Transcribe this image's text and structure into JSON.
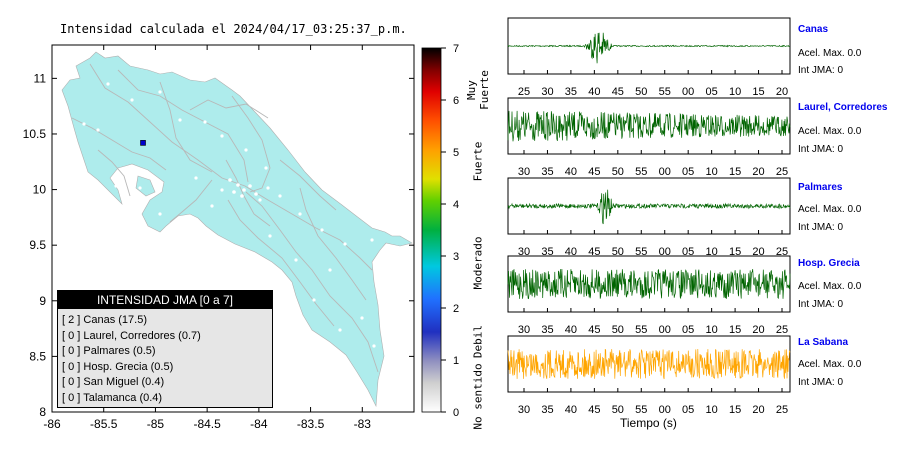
{
  "map": {
    "title": "Intensidad calculada el 2024/04/17_03:25:37_p.m.",
    "x_ticks": [
      "-86",
      "-85.5",
      "-85",
      "-84.5",
      "-84",
      "-83.5",
      "-83"
    ],
    "y_ticks": [
      "11",
      "10.5",
      "10",
      "9.5",
      "9",
      "8.5",
      "8"
    ],
    "station": {
      "lon": -85.12,
      "lat": 10.42
    }
  },
  "legend": {
    "title": "INTENSIDAD JMA [0 a 7]",
    "rows": [
      "[ 2 ]  Canas (17.5)",
      "[ 0 ]  Laurel, Corredores (0.7)",
      "[ 0 ]  Palmares (0.5)",
      "[ 0 ]  Hosp. Grecia (0.5)",
      "[ 0 ]  San Miguel (0.4)",
      "[ 0 ]  Talamanca (0.4)"
    ]
  },
  "colorbar": {
    "ticks": [
      "0",
      "1",
      "2",
      "3",
      "4",
      "5",
      "6",
      "7"
    ],
    "labels": [
      "No sentido",
      "Debil",
      "Moderado",
      "Fuerte",
      "Muy Fuerte"
    ]
  },
  "traces": {
    "xlabel": "Tiempo (s)",
    "accel_label": "Acel. Max. 0.0",
    "int_label": "Int JMA: 0",
    "items": [
      {
        "name": "Canas",
        "color": "#006400",
        "ticks": [
          "25",
          "30",
          "35",
          "40",
          "45",
          "50",
          "55",
          "00",
          "05",
          "10",
          "15",
          "20"
        ]
      },
      {
        "name": "Laurel, Corredores",
        "color": "#006400",
        "ticks": [
          "30",
          "35",
          "40",
          "45",
          "50",
          "55",
          "00",
          "05",
          "10",
          "15",
          "20",
          "25"
        ]
      },
      {
        "name": "Palmares",
        "color": "#006400",
        "ticks": [
          "30",
          "35",
          "40",
          "45",
          "50",
          "55",
          "00",
          "05",
          "10",
          "15",
          "20",
          "25"
        ]
      },
      {
        "name": "Hosp. Grecia",
        "color": "#006400",
        "ticks": [
          "30",
          "35",
          "40",
          "45",
          "50",
          "55",
          "00",
          "05",
          "10",
          "15",
          "20",
          "25"
        ]
      },
      {
        "name": "La Sabana",
        "color": "#ffa500",
        "ticks": [
          "30",
          "35",
          "40",
          "45",
          "50",
          "55",
          "00",
          "05",
          "10",
          "15",
          "20",
          "25"
        ]
      }
    ]
  },
  "chart_data": {
    "type": "line",
    "title": "Intensidad calculada el 2024/04/17_03:25:37_p.m.",
    "xlabel": "Tiempo (s)",
    "xlim_map": [
      -86,
      -82.5
    ],
    "ylim_map": [
      8,
      11.3
    ],
    "series": [
      {
        "name": "Canas",
        "jma": 2,
        "value": 17.5
      },
      {
        "name": "Laurel, Corredores",
        "jma": 0,
        "value": 0.7
      },
      {
        "name": "Palmares",
        "jma": 0,
        "value": 0.5
      },
      {
        "name": "Hosp. Grecia",
        "jma": 0,
        "value": 0.5
      },
      {
        "name": "San Miguel",
        "jma": 0,
        "value": 0.4
      },
      {
        "name": "Talamanca",
        "jma": 0,
        "value": 0.4
      }
    ]
  }
}
